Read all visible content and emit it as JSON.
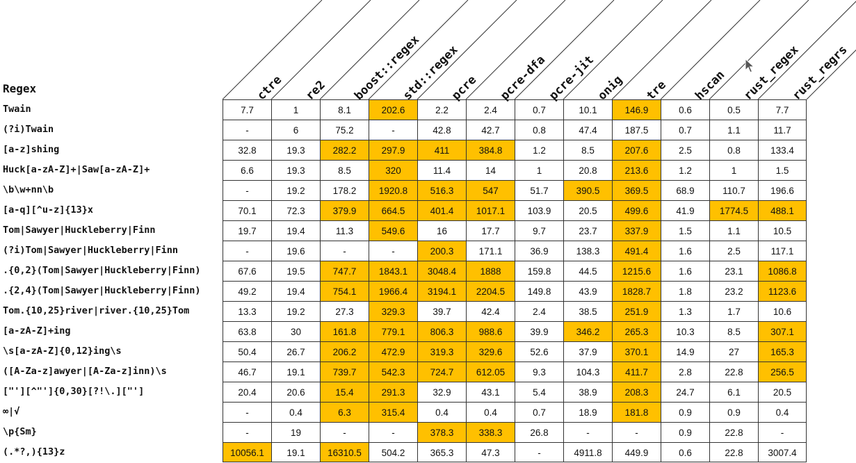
{
  "header": {
    "regex_label": "Regex"
  },
  "columns": [
    "ctre",
    "re2",
    "boost::regex",
    "std::regex",
    "pcre",
    "pcre-dfa",
    "pcre-jit",
    "onig",
    "tre",
    "hscan",
    "rust_regex",
    "rust_regrs"
  ],
  "highlight_color": "#ffc000",
  "cursor": {
    "icon": "mouse-pointer-icon"
  },
  "rows": [
    {
      "regex": "Twain",
      "values": [
        "7.7",
        "1",
        "8.1",
        "202.6",
        "2.2",
        "2.4",
        "0.7",
        "10.1",
        "146.9",
        "0.6",
        "0.5",
        "7.7"
      ],
      "highlight": [
        3,
        8
      ]
    },
    {
      "regex": "(?i)Twain",
      "values": [
        "-",
        "6",
        "75.2",
        "-",
        "42.8",
        "42.7",
        "0.8",
        "47.4",
        "187.5",
        "0.7",
        "1.1",
        "11.7"
      ],
      "highlight": []
    },
    {
      "regex": "[a-z]shing",
      "values": [
        "32.8",
        "19.3",
        "282.2",
        "297.9",
        "411",
        "384.8",
        "1.2",
        "8.5",
        "207.6",
        "2.5",
        "0.8",
        "133.4"
      ],
      "highlight": [
        2,
        3,
        4,
        5,
        8
      ]
    },
    {
      "regex": "Huck[a-zA-Z]+|Saw[a-zA-Z]+",
      "values": [
        "6.6",
        "19.3",
        "8.5",
        "320",
        "11.4",
        "14",
        "1",
        "20.8",
        "213.6",
        "1.2",
        "1",
        "1.5"
      ],
      "highlight": [
        3,
        8
      ]
    },
    {
      "regex": "\\b\\w+nn\\b",
      "values": [
        "-",
        "19.2",
        "178.2",
        "1920.8",
        "516.3",
        "547",
        "51.7",
        "390.5",
        "369.5",
        "68.9",
        "110.7",
        "196.6"
      ],
      "highlight": [
        3,
        4,
        5,
        7,
        8
      ]
    },
    {
      "regex": "[a-q][^u-z]{13}x",
      "values": [
        "70.1",
        "72.3",
        "379.9",
        "664.5",
        "401.4",
        "1017.1",
        "103.9",
        "20.5",
        "499.6",
        "41.9",
        "1774.5",
        "488.1"
      ],
      "highlight": [
        2,
        3,
        4,
        5,
        8,
        10,
        11
      ]
    },
    {
      "regex": "Tom|Sawyer|Huckleberry|Finn",
      "values": [
        "19.7",
        "19.4",
        "11.3",
        "549.6",
        "16",
        "17.7",
        "9.7",
        "23.7",
        "337.9",
        "1.5",
        "1.1",
        "10.5"
      ],
      "highlight": [
        3,
        8
      ]
    },
    {
      "regex": "(?i)Tom|Sawyer|Huckleberry|Finn",
      "values": [
        "-",
        "19.6",
        "-",
        "-",
        "200.3",
        "171.1",
        "36.9",
        "138.3",
        "491.4",
        "1.6",
        "2.5",
        "117.1"
      ],
      "highlight": [
        4,
        8
      ]
    },
    {
      "regex": ".{0,2}(Tom|Sawyer|Huckleberry|Finn)",
      "values": [
        "67.6",
        "19.5",
        "747.7",
        "1843.1",
        "3048.4",
        "1888",
        "159.8",
        "44.5",
        "1215.6",
        "1.6",
        "23.1",
        "1086.8"
      ],
      "highlight": [
        2,
        3,
        4,
        5,
        8,
        11
      ]
    },
    {
      "regex": ".{2,4}(Tom|Sawyer|Huckleberry|Finn)",
      "values": [
        "49.2",
        "19.4",
        "754.1",
        "1966.4",
        "3194.1",
        "2204.5",
        "149.8",
        "43.9",
        "1828.7",
        "1.8",
        "23.2",
        "1123.6"
      ],
      "highlight": [
        2,
        3,
        4,
        5,
        8,
        11
      ]
    },
    {
      "regex": "Tom.{10,25}river|river.{10,25}Tom",
      "values": [
        "13.3",
        "19.2",
        "27.3",
        "329.3",
        "39.7",
        "42.4",
        "2.4",
        "38.5",
        "251.9",
        "1.3",
        "1.7",
        "10.6"
      ],
      "highlight": [
        3,
        8
      ]
    },
    {
      "regex": "[a-zA-Z]+ing",
      "values": [
        "63.8",
        "30",
        "161.8",
        "779.1",
        "806.3",
        "988.6",
        "39.9",
        "346.2",
        "265.3",
        "10.3",
        "8.5",
        "307.1"
      ],
      "highlight": [
        2,
        3,
        4,
        5,
        7,
        8,
        11
      ]
    },
    {
      "regex": "\\s[a-zA-Z]{0,12}ing\\s",
      "values": [
        "50.4",
        "26.7",
        "206.2",
        "472.9",
        "319.3",
        "329.6",
        "52.6",
        "37.9",
        "370.1",
        "14.9",
        "27",
        "165.3"
      ],
      "highlight": [
        2,
        3,
        4,
        5,
        8,
        11
      ]
    },
    {
      "regex": "([A-Za-z]awyer|[A-Za-z]inn)\\s",
      "values": [
        "46.7",
        "19.1",
        "739.7",
        "542.3",
        "724.7",
        "612.05",
        "9.3",
        "104.3",
        "411.7",
        "2.8",
        "22.8",
        "256.5"
      ],
      "highlight": [
        2,
        3,
        4,
        5,
        8,
        11
      ]
    },
    {
      "regex": "[\"'][^\"']{0,30}[?!\\.][\"']",
      "values": [
        "20.4",
        "20.6",
        "15.4",
        "291.3",
        "32.9",
        "43.1",
        "5.4",
        "38.9",
        "208.3",
        "24.7",
        "6.1",
        "20.5"
      ],
      "highlight": [
        2,
        3,
        8
      ]
    },
    {
      "regex": "∞|√",
      "values": [
        "-",
        "0.4",
        "6.3",
        "315.4",
        "0.4",
        "0.4",
        "0.7",
        "18.9",
        "181.8",
        "0.9",
        "0.9",
        "0.4"
      ],
      "highlight": [
        2,
        3,
        8
      ]
    },
    {
      "regex": "\\p{Sm}",
      "values": [
        "-",
        "19",
        "-",
        "-",
        "378.3",
        "338.3",
        "26.8",
        "-",
        "-",
        "0.9",
        "22.8",
        "-"
      ],
      "highlight": [
        4,
        5
      ]
    },
    {
      "regex": "(.*?,){13}z",
      "values": [
        "10056.1",
        "19.1",
        "16310.5",
        "504.2",
        "365.3",
        "47.3",
        "-",
        "4911.8",
        "449.9",
        "0.6",
        "22.8",
        "3007.4"
      ],
      "highlight": [
        0,
        2
      ]
    }
  ]
}
